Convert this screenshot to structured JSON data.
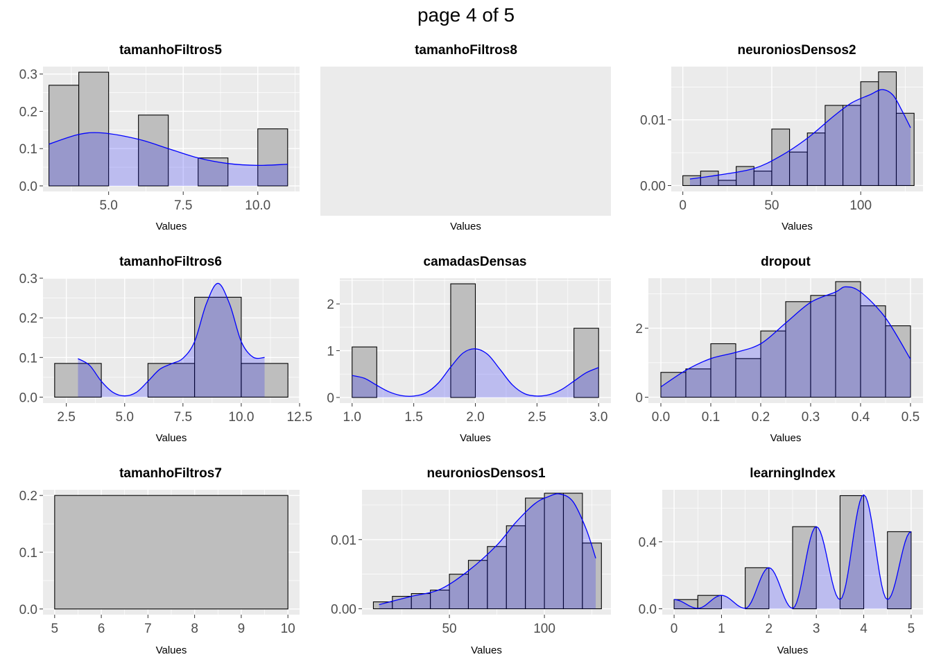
{
  "page_title": "page 4 of 5",
  "colors": {
    "panel_bg": "#ebebeb",
    "grid": "#ffffff",
    "bar_fill": "#bebebe",
    "bar_stroke": "#000000",
    "density_fill": "#0000ff",
    "density_fill_alpha": 0.2,
    "density_line": "#0000ff",
    "tick_text": "#4d4d4d"
  },
  "chart_data": [
    {
      "type": "bar",
      "title": "tamanhoFiltros5",
      "xlabel": "Values",
      "ylabel": "",
      "xlim": [
        2.8,
        11.4
      ],
      "ylim": [
        -0.015,
        0.32
      ],
      "xticks": [
        5.0,
        7.5,
        10.0
      ],
      "xtick_labels": [
        "5.0",
        "7.5",
        "10.0"
      ],
      "yticks": [
        0.0,
        0.1,
        0.2,
        0.3
      ],
      "ytick_labels": [
        "0.0",
        "0.1",
        "0.2",
        "0.3"
      ],
      "minor_x": [
        3.75,
        6.25,
        8.75,
        11.25
      ],
      "minor_y": [
        0.05,
        0.15,
        0.25
      ],
      "bins": [
        [
          3,
          4,
          0.27
        ],
        [
          4,
          5,
          0.305
        ],
        [
          5,
          6,
          0
        ],
        [
          6,
          7,
          0.19
        ],
        [
          7,
          8,
          0
        ],
        [
          8,
          9,
          0.075
        ],
        [
          9,
          10,
          0
        ],
        [
          10,
          11,
          0.153
        ]
      ],
      "density": [
        [
          3,
          0.112
        ],
        [
          4,
          0.138
        ],
        [
          4.8,
          0.142
        ],
        [
          6,
          0.125
        ],
        [
          7,
          0.1
        ],
        [
          8,
          0.075
        ],
        [
          9,
          0.06
        ],
        [
          10,
          0.055
        ],
        [
          11,
          0.058
        ]
      ]
    },
    {
      "type": "bar",
      "title": "tamanhoFiltros8",
      "xlabel": "Values",
      "ylabel": "",
      "empty": true,
      "bins": [],
      "density": []
    },
    {
      "type": "bar",
      "title": "neuroniosDensos2",
      "xlabel": "Values",
      "ylabel": "",
      "xlim": [
        -6.5,
        135
      ],
      "ylim": [
        -0.0009,
        0.0181
      ],
      "xticks": [
        0,
        50,
        100
      ],
      "xtick_labels": [
        "0",
        "50",
        "100"
      ],
      "yticks": [
        0.0,
        0.01
      ],
      "ytick_labels": [
        "0.00",
        "0.01"
      ],
      "minor_x": [
        25,
        75,
        125
      ],
      "minor_y": [
        0.005,
        0.015
      ],
      "bins": [
        [
          0,
          10,
          0.0015
        ],
        [
          10,
          20,
          0.0022
        ],
        [
          20,
          30,
          0.0008
        ],
        [
          30,
          40,
          0.0029
        ],
        [
          40,
          50,
          0.0022
        ],
        [
          50,
          60,
          0.0086
        ],
        [
          60,
          70,
          0.0051
        ],
        [
          70,
          80,
          0.008
        ],
        [
          80,
          90,
          0.0122
        ],
        [
          90,
          100,
          0.0122
        ],
        [
          100,
          110,
          0.0158
        ],
        [
          110,
          120,
          0.0173
        ],
        [
          120,
          130,
          0.011
        ]
      ],
      "density": [
        [
          4,
          0.001
        ],
        [
          20,
          0.0016
        ],
        [
          40,
          0.0026
        ],
        [
          55,
          0.0045
        ],
        [
          70,
          0.0072
        ],
        [
          85,
          0.0106
        ],
        [
          95,
          0.0126
        ],
        [
          105,
          0.0138
        ],
        [
          112,
          0.0146
        ],
        [
          118,
          0.0138
        ],
        [
          123,
          0.0115
        ],
        [
          128,
          0.0088
        ]
      ]
    },
    {
      "type": "bar",
      "title": "tamanhoFiltros6",
      "xlabel": "Values",
      "ylabel": "",
      "xlim": [
        1.5,
        12.5
      ],
      "ylim": [
        -0.015,
        0.3
      ],
      "xticks": [
        2.5,
        5.0,
        7.5,
        10.0,
        12.5
      ],
      "xtick_labels": [
        "2.5",
        "5.0",
        "7.5",
        "10.0",
        "12.5"
      ],
      "yticks": [
        0.0,
        0.1,
        0.2,
        0.3
      ],
      "ytick_labels": [
        "0.0",
        "0.1",
        "0.2",
        "0.3"
      ],
      "minor_x": [
        3.75,
        6.25,
        8.75,
        11.25
      ],
      "minor_y": [
        0.05,
        0.15,
        0.25
      ],
      "bins": [
        [
          2,
          4,
          0.085
        ],
        [
          4,
          6,
          0
        ],
        [
          6,
          8,
          0.085
        ],
        [
          8,
          10,
          0.252
        ],
        [
          10,
          12,
          0.085
        ]
      ],
      "density": [
        [
          3,
          0.097
        ],
        [
          3.5,
          0.08
        ],
        [
          4,
          0.04
        ],
        [
          4.5,
          0.012
        ],
        [
          5,
          0.003
        ],
        [
          5.5,
          0.012
        ],
        [
          6,
          0.04
        ],
        [
          6.5,
          0.07
        ],
        [
          7,
          0.084
        ],
        [
          7.5,
          0.098
        ],
        [
          8,
          0.14
        ],
        [
          8.5,
          0.235
        ],
        [
          9,
          0.287
        ],
        [
          9.5,
          0.235
        ],
        [
          10,
          0.14
        ],
        [
          10.5,
          0.101
        ],
        [
          11,
          0.1
        ]
      ]
    },
    {
      "type": "bar",
      "title": "camadasDensas",
      "xlabel": "Values",
      "ylabel": "",
      "xlim": [
        0.9,
        3.1
      ],
      "ylim": [
        -0.12,
        2.55
      ],
      "xticks": [
        1.0,
        1.5,
        2.0,
        2.5,
        3.0
      ],
      "xtick_labels": [
        "1.0",
        "1.5",
        "2.0",
        "2.5",
        "3.0"
      ],
      "yticks": [
        0,
        1,
        2
      ],
      "ytick_labels": [
        "0",
        "1",
        "2"
      ],
      "minor_x": [
        1.25,
        1.75,
        2.25,
        2.75
      ],
      "minor_y": [
        0.5,
        1.5,
        2.5
      ],
      "bins": [
        [
          1,
          1.2,
          1.08
        ],
        [
          1.2,
          1.4,
          0
        ],
        [
          1.4,
          1.6,
          0
        ],
        [
          1.6,
          1.8,
          0
        ],
        [
          1.8,
          2.0,
          2.43
        ],
        [
          2.0,
          2.2,
          0
        ],
        [
          2.2,
          2.4,
          0
        ],
        [
          2.4,
          2.6,
          0
        ],
        [
          2.6,
          2.8,
          0
        ],
        [
          2.8,
          3.0,
          1.48
        ]
      ],
      "density": [
        [
          1.0,
          0.47
        ],
        [
          1.1,
          0.41
        ],
        [
          1.2,
          0.26
        ],
        [
          1.3,
          0.12
        ],
        [
          1.4,
          0.04
        ],
        [
          1.5,
          0.03
        ],
        [
          1.6,
          0.1
        ],
        [
          1.7,
          0.31
        ],
        [
          1.8,
          0.65
        ],
        [
          1.9,
          0.95
        ],
        [
          2.0,
          1.04
        ],
        [
          2.1,
          0.92
        ],
        [
          2.2,
          0.6
        ],
        [
          2.3,
          0.27
        ],
        [
          2.4,
          0.08
        ],
        [
          2.5,
          0.03
        ],
        [
          2.6,
          0.06
        ],
        [
          2.7,
          0.17
        ],
        [
          2.8,
          0.35
        ],
        [
          2.9,
          0.53
        ],
        [
          3.0,
          0.64
        ]
      ]
    },
    {
      "type": "bar",
      "title": "dropout",
      "xlabel": "Values",
      "ylabel": "",
      "xlim": [
        -0.025,
        0.525
      ],
      "ylim": [
        -0.17,
        3.45
      ],
      "xticks": [
        0.0,
        0.1,
        0.2,
        0.3,
        0.4,
        0.5
      ],
      "xtick_labels": [
        "0.0",
        "0.1",
        "0.2",
        "0.3",
        "0.4",
        "0.5"
      ],
      "yticks": [
        0,
        2
      ],
      "ytick_labels": [
        "0",
        "2"
      ],
      "minor_x": [
        0.05,
        0.15,
        0.25,
        0.35,
        0.45
      ],
      "minor_y": [
        1,
        3
      ],
      "bins": [
        [
          0.0,
          0.05,
          0.72
        ],
        [
          0.05,
          0.1,
          0.82
        ],
        [
          0.1,
          0.15,
          1.55
        ],
        [
          0.15,
          0.2,
          1.12
        ],
        [
          0.2,
          0.25,
          1.92
        ],
        [
          0.25,
          0.3,
          2.77
        ],
        [
          0.3,
          0.35,
          2.95
        ],
        [
          0.35,
          0.4,
          3.35
        ],
        [
          0.4,
          0.45,
          2.65
        ],
        [
          0.45,
          0.5,
          2.07
        ]
      ],
      "density": [
        [
          0.0,
          0.3
        ],
        [
          0.05,
          0.78
        ],
        [
          0.1,
          1.12
        ],
        [
          0.15,
          1.3
        ],
        [
          0.2,
          1.55
        ],
        [
          0.25,
          2.15
        ],
        [
          0.3,
          2.75
        ],
        [
          0.35,
          3.05
        ],
        [
          0.37,
          3.2
        ],
        [
          0.4,
          3.05
        ],
        [
          0.45,
          2.3
        ],
        [
          0.5,
          1.1
        ]
      ]
    },
    {
      "type": "bar",
      "title": "tamanhoFiltros7",
      "xlabel": "Values",
      "ylabel": "",
      "xlim": [
        4.75,
        10.25
      ],
      "ylim": [
        -0.01,
        0.21
      ],
      "xticks": [
        5,
        6,
        7,
        8,
        9,
        10
      ],
      "xtick_labels": [
        "5",
        "6",
        "7",
        "8",
        "9",
        "10"
      ],
      "yticks": [
        0.0,
        0.1,
        0.2
      ],
      "ytick_labels": [
        "0.0",
        "0.1",
        "0.2"
      ],
      "minor_x": [
        5.5,
        6.5,
        7.5,
        8.5,
        9.5
      ],
      "minor_y": [
        0.05,
        0.15
      ],
      "bins": [
        [
          5,
          10,
          0.2
        ]
      ],
      "density": []
    },
    {
      "type": "bar",
      "title": "neuroniosDensos1",
      "xlabel": "Values",
      "ylabel": "",
      "xlim": [
        4,
        135
      ],
      "ylim": [
        -0.00085,
        0.0172
      ],
      "xticks": [
        50,
        100
      ],
      "xtick_labels": [
        "50",
        "100"
      ],
      "yticks": [
        0.0,
        0.01
      ],
      "ytick_labels": [
        "0.00",
        "0.01"
      ],
      "minor_x": [
        25,
        75,
        125
      ],
      "minor_y": [
        0.005,
        0.015
      ],
      "bins": [
        [
          10,
          20,
          0.001
        ],
        [
          20,
          30,
          0.0018
        ],
        [
          30,
          40,
          0.0022
        ],
        [
          40,
          50,
          0.0027
        ],
        [
          50,
          60,
          0.005
        ],
        [
          60,
          70,
          0.007
        ],
        [
          70,
          80,
          0.009
        ],
        [
          80,
          90,
          0.012
        ],
        [
          90,
          100,
          0.016
        ],
        [
          100,
          110,
          0.0167
        ],
        [
          110,
          120,
          0.0167
        ],
        [
          120,
          130,
          0.0095
        ]
      ],
      "density": [
        [
          13,
          0.0006
        ],
        [
          30,
          0.0018
        ],
        [
          45,
          0.0028
        ],
        [
          60,
          0.0055
        ],
        [
          75,
          0.0092
        ],
        [
          85,
          0.0125
        ],
        [
          95,
          0.0152
        ],
        [
          102,
          0.0162
        ],
        [
          108,
          0.0166
        ],
        [
          115,
          0.0155
        ],
        [
          122,
          0.0115
        ],
        [
          127,
          0.0073
        ]
      ]
    },
    {
      "type": "bar",
      "title": "learningIndex",
      "xlabel": "Values",
      "ylabel": "",
      "xlim": [
        -0.25,
        5.25
      ],
      "ylim": [
        -0.035,
        0.71
      ],
      "xticks": [
        0,
        1,
        2,
        3,
        4,
        5
      ],
      "xtick_labels": [
        "0",
        "1",
        "2",
        "3",
        "4",
        "5"
      ],
      "yticks": [
        0.0,
        0.4
      ],
      "ytick_labels": [
        "0.0",
        "0.4"
      ],
      "minor_x": [
        0.5,
        1.5,
        2.5,
        3.5,
        4.5
      ],
      "minor_y": [
        0.2,
        0.6
      ],
      "bins": [
        [
          0,
          0.5,
          0.055
        ],
        [
          0.5,
          1.0,
          0.08
        ],
        [
          1.0,
          1.5,
          0
        ],
        [
          1.5,
          2.0,
          0.245
        ],
        [
          2.0,
          2.5,
          0
        ],
        [
          2.5,
          3.0,
          0.49
        ],
        [
          3.0,
          3.5,
          0
        ],
        [
          3.5,
          4.0,
          0.675
        ],
        [
          4.0,
          4.5,
          0
        ],
        [
          4.5,
          5.0,
          0.46
        ]
      ],
      "density": [
        [
          0,
          0.055
        ],
        [
          0.5,
          0.003
        ],
        [
          1,
          0.08
        ],
        [
          1.5,
          0.003
        ],
        [
          2,
          0.245
        ],
        [
          2.5,
          0.003
        ],
        [
          3,
          0.49
        ],
        [
          3.5,
          0.055
        ],
        [
          4,
          0.68
        ],
        [
          4.5,
          0.055
        ],
        [
          5,
          0.46
        ]
      ],
      "density_peaky": true
    }
  ]
}
